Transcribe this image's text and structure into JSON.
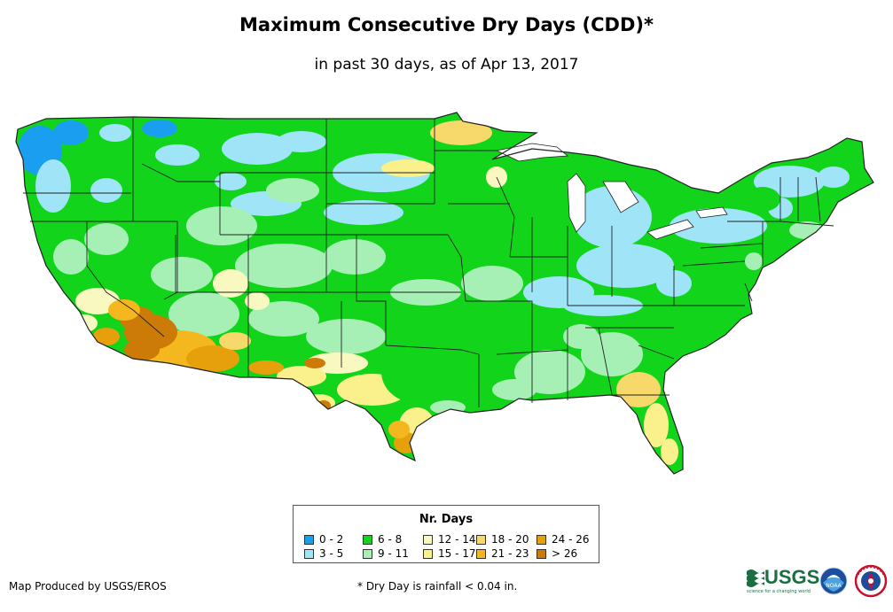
{
  "title": "Maximum Consecutive Dry Days (CDD)*",
  "subtitle": "in past 30 days, as of Apr 13, 2017",
  "legend": {
    "title": "Nr. Days",
    "items": [
      {
        "label": "0 - 2",
        "color": "#1a9ff0"
      },
      {
        "label": "3 - 5",
        "color": "#9fe4f7"
      },
      {
        "label": "6 - 8",
        "color": "#12d41b"
      },
      {
        "label": "9 - 11",
        "color": "#a6f0b6"
      },
      {
        "label": "12 - 14",
        "color": "#f8f8c0"
      },
      {
        "label": "15 - 17",
        "color": "#faf08c"
      },
      {
        "label": "18 - 20",
        "color": "#f7d86a"
      },
      {
        "label": "21 - 23",
        "color": "#f4b71e"
      },
      {
        "label": "24 - 26",
        "color": "#e5a00c"
      },
      {
        "label": "> 26",
        "color": "#cc7a08"
      }
    ]
  },
  "footer": {
    "credit": "Map Produced by USGS/EROS",
    "footnote": "* Dry Day is rainfall < 0.04 in."
  },
  "logos": {
    "usgs": "USGS",
    "usgs_tagline": "science for a changing world",
    "noaa": "NOAA",
    "nws": "National Weather Service"
  },
  "colors": {
    "border": "#222222",
    "water": "#ffffff"
  },
  "icons": {
    "usgs": "usgs-logo-icon",
    "noaa": "noaa-logo-icon",
    "nws": "nws-logo-icon"
  }
}
